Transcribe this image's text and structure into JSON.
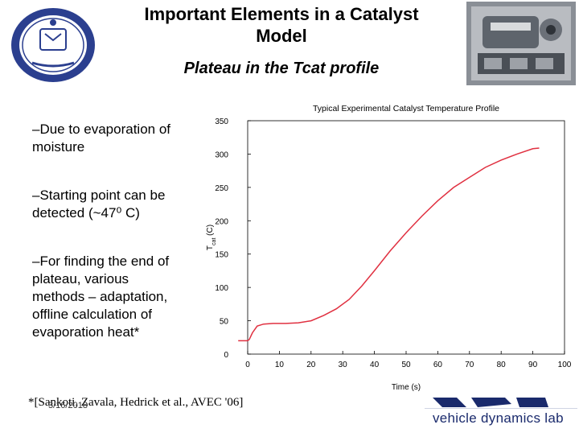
{
  "slide": {
    "title_line1": "Important Elements in a Catalyst",
    "title_line2": "Model",
    "subtitle": "Plateau in the Tcat profile",
    "bullets": [
      {
        "lines": [
          "–Due to evaporation of",
          "moisture"
        ]
      },
      {
        "lines": [
          "–Starting point can be",
          "detected (~47⁰ C)"
        ]
      },
      {
        "lines": [
          "–For finding the end of",
          "plateau, various",
          "methods – adaptation,",
          "offline calculation of",
          "evaporation heat*"
        ]
      }
    ],
    "footnote": "*[Sankoti, Zavala, Hedrick et al., AVEC '06]",
    "date": "3/16/2018",
    "logo_text": "vehicle dynamics lab",
    "colors": {
      "seal_blue": "#2b3f8f",
      "curve_red": "#e03040",
      "vdl_blue": "#1a2a6c"
    },
    "icons": {
      "seal": "university-seal-icon",
      "photo": "engine-photo-icon",
      "logo": "vdl-logo-icon"
    }
  },
  "chart_data": {
    "type": "line",
    "title": "Typical Experimental Catalyst Temperature Profile",
    "xlabel": "Time (s)",
    "ylabel": "T_cat (C)",
    "xlim": [
      0,
      100
    ],
    "ylim": [
      0,
      350
    ],
    "xticks": [
      0,
      10,
      20,
      30,
      40,
      50,
      60,
      70,
      80,
      90,
      100
    ],
    "yticks": [
      0,
      50,
      100,
      150,
      200,
      250,
      300,
      350
    ],
    "grid": false,
    "series": [
      {
        "x": [
          -3,
          0,
          0.5,
          1.5,
          3,
          5,
          8,
          12,
          16,
          20,
          24,
          28,
          32,
          36,
          40,
          45,
          50,
          55,
          60,
          65,
          70,
          75,
          80,
          85,
          90,
          92
        ],
        "y": [
          20,
          20,
          22,
          32,
          42,
          45,
          46,
          46,
          47,
          50,
          58,
          68,
          82,
          102,
          125,
          155,
          182,
          207,
          230,
          250,
          265,
          280,
          291,
          300,
          308,
          309
        ]
      }
    ]
  }
}
